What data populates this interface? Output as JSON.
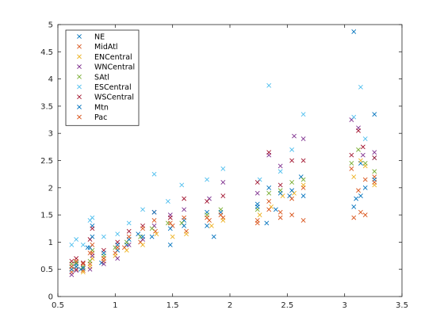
{
  "chart_data": {
    "type": "scatter",
    "title": "",
    "xlabel": "",
    "ylabel": "",
    "xlim": [
      0.5,
      3.5
    ],
    "ylim": [
      0,
      5
    ],
    "x_ticks": [
      "0.5",
      "1",
      "1.5",
      "2",
      "2.5",
      "3",
      "3.5"
    ],
    "y_ticks": [
      "0",
      "0.5",
      "1",
      "1.5",
      "2",
      "2.5",
      "3",
      "3.5",
      "4",
      "4.5",
      "5"
    ],
    "grid": false,
    "legend_position": "top-left",
    "marker": "x",
    "series": [
      {
        "name": "NE",
        "color": "#0072BD",
        "points": [
          [
            0.62,
            0.55
          ],
          [
            0.66,
            0.6
          ],
          [
            0.7,
            0.5
          ],
          [
            0.76,
            0.9
          ],
          [
            0.8,
            1.3
          ],
          [
            0.88,
            0.62
          ],
          [
            1.02,
            0.85
          ],
          [
            1.1,
            0.95
          ],
          [
            1.2,
            1.15
          ],
          [
            1.32,
            1.1
          ],
          [
            1.48,
            0.95
          ],
          [
            1.6,
            1.4
          ],
          [
            1.8,
            1.55
          ],
          [
            1.86,
            1.1
          ],
          [
            2.24,
            1.7
          ],
          [
            2.32,
            1.35
          ],
          [
            2.4,
            1.6
          ],
          [
            2.52,
            1.85
          ],
          [
            2.62,
            2.2
          ],
          [
            3.08,
            4.87
          ],
          [
            3.1,
            1.8
          ],
          [
            3.14,
            2.45
          ],
          [
            3.26,
            3.35
          ]
        ]
      },
      {
        "name": "MidAtl",
        "color": "#D95319",
        "points": [
          [
            0.62,
            0.45
          ],
          [
            0.66,
            0.5
          ],
          [
            0.72,
            0.48
          ],
          [
            0.78,
            0.6
          ],
          [
            0.8,
            0.8
          ],
          [
            0.9,
            0.65
          ],
          [
            1.0,
            0.8
          ],
          [
            1.08,
            0.9
          ],
          [
            1.22,
            1.0
          ],
          [
            1.35,
            1.2
          ],
          [
            1.5,
            1.3
          ],
          [
            1.62,
            1.2
          ],
          [
            1.82,
            1.4
          ],
          [
            1.94,
            1.45
          ],
          [
            2.24,
            1.4
          ],
          [
            2.34,
            1.75
          ],
          [
            2.44,
            1.55
          ],
          [
            2.54,
            1.8
          ],
          [
            2.64,
            2.0
          ],
          [
            3.06,
            2.35
          ],
          [
            3.12,
            1.95
          ],
          [
            3.18,
            2.15
          ],
          [
            3.26,
            2.2
          ]
        ]
      },
      {
        "name": "ENCentral",
        "color": "#EDB120",
        "points": [
          [
            0.62,
            0.5
          ],
          [
            0.66,
            0.55
          ],
          [
            0.72,
            0.45
          ],
          [
            0.78,
            0.55
          ],
          [
            0.8,
            0.7
          ],
          [
            0.9,
            0.7
          ],
          [
            1.0,
            0.75
          ],
          [
            1.1,
            0.85
          ],
          [
            1.24,
            0.95
          ],
          [
            1.36,
            1.15
          ],
          [
            1.5,
            1.1
          ],
          [
            1.62,
            1.15
          ],
          [
            1.84,
            1.3
          ],
          [
            1.94,
            1.4
          ],
          [
            2.26,
            1.5
          ],
          [
            2.36,
            1.65
          ],
          [
            2.46,
            1.85
          ],
          [
            2.56,
            1.9
          ],
          [
            2.64,
            2.05
          ],
          [
            3.08,
            2.2
          ],
          [
            3.14,
            2.5
          ],
          [
            3.18,
            2.4
          ],
          [
            3.26,
            2.05
          ]
        ]
      },
      {
        "name": "WNCentral",
        "color": "#7E2F8E",
        "points": [
          [
            0.62,
            0.4
          ],
          [
            0.66,
            0.48
          ],
          [
            0.72,
            0.52
          ],
          [
            0.78,
            0.5
          ],
          [
            0.8,
            0.75
          ],
          [
            0.9,
            0.6
          ],
          [
            1.02,
            0.7
          ],
          [
            1.12,
            0.95
          ],
          [
            1.24,
            1.05
          ],
          [
            1.34,
            1.3
          ],
          [
            1.48,
            1.5
          ],
          [
            1.6,
            1.6
          ],
          [
            1.82,
            1.8
          ],
          [
            1.94,
            2.1
          ],
          [
            2.24,
            1.9
          ],
          [
            2.34,
            2.6
          ],
          [
            2.44,
            2.4
          ],
          [
            2.56,
            2.95
          ],
          [
            2.64,
            2.9
          ],
          [
            3.06,
            3.25
          ],
          [
            3.12,
            3.1
          ],
          [
            3.16,
            2.6
          ],
          [
            3.26,
            2.65
          ]
        ]
      },
      {
        "name": "SAtl",
        "color": "#77AC30",
        "points": [
          [
            0.62,
            0.6
          ],
          [
            0.66,
            0.62
          ],
          [
            0.72,
            0.55
          ],
          [
            0.78,
            0.65
          ],
          [
            0.8,
            0.85
          ],
          [
            0.9,
            0.75
          ],
          [
            1.0,
            0.9
          ],
          [
            1.1,
            1.0
          ],
          [
            1.22,
            1.1
          ],
          [
            1.32,
            1.25
          ],
          [
            1.46,
            1.35
          ],
          [
            1.58,
            1.35
          ],
          [
            1.8,
            1.5
          ],
          [
            1.92,
            1.6
          ],
          [
            2.24,
            1.6
          ],
          [
            2.34,
            1.9
          ],
          [
            2.44,
            1.95
          ],
          [
            2.54,
            2.1
          ],
          [
            2.64,
            2.15
          ],
          [
            3.06,
            2.45
          ],
          [
            3.12,
            2.7
          ],
          [
            3.18,
            2.45
          ],
          [
            3.26,
            2.3
          ]
        ]
      },
      {
        "name": "ESCentral",
        "color": "#4DBEEE",
        "points": [
          [
            0.62,
            0.95
          ],
          [
            0.66,
            1.05
          ],
          [
            0.72,
            0.95
          ],
          [
            0.78,
            1.4
          ],
          [
            0.8,
            1.45
          ],
          [
            0.9,
            1.1
          ],
          [
            1.02,
            1.15
          ],
          [
            1.12,
            1.35
          ],
          [
            1.24,
            1.6
          ],
          [
            1.34,
            2.25
          ],
          [
            1.46,
            1.75
          ],
          [
            1.58,
            2.05
          ],
          [
            1.8,
            2.15
          ],
          [
            1.94,
            2.35
          ],
          [
            2.26,
            2.15
          ],
          [
            2.34,
            3.88
          ],
          [
            2.44,
            2.3
          ],
          [
            2.54,
            2.7
          ],
          [
            2.64,
            3.35
          ],
          [
            3.08,
            3.3
          ],
          [
            3.14,
            3.85
          ],
          [
            3.18,
            2.9
          ],
          [
            3.26,
            2.55
          ]
        ]
      },
      {
        "name": "WSCentral",
        "color": "#A2142F",
        "points": [
          [
            0.62,
            0.65
          ],
          [
            0.66,
            0.7
          ],
          [
            0.72,
            0.62
          ],
          [
            0.78,
            1.05
          ],
          [
            0.8,
            1.25
          ],
          [
            0.9,
            0.85
          ],
          [
            1.02,
            1.0
          ],
          [
            1.12,
            1.2
          ],
          [
            1.24,
            1.3
          ],
          [
            1.34,
            1.55
          ],
          [
            1.48,
            1.45
          ],
          [
            1.6,
            1.8
          ],
          [
            1.8,
            1.75
          ],
          [
            1.94,
            1.85
          ],
          [
            2.24,
            2.1
          ],
          [
            2.34,
            2.65
          ],
          [
            2.44,
            2.05
          ],
          [
            2.54,
            2.5
          ],
          [
            2.64,
            2.5
          ],
          [
            3.06,
            2.6
          ],
          [
            3.12,
            3.05
          ],
          [
            3.16,
            2.75
          ],
          [
            3.26,
            2.55
          ]
        ]
      },
      {
        "name": "Mtn",
        "color": "#0072BD",
        "points": [
          [
            0.62,
            0.5
          ],
          [
            0.66,
            0.55
          ],
          [
            0.72,
            0.52
          ],
          [
            0.78,
            0.9
          ],
          [
            0.8,
            1.1
          ],
          [
            0.9,
            0.8
          ],
          [
            1.02,
            0.95
          ],
          [
            1.12,
            1.05
          ],
          [
            1.24,
            1.1
          ],
          [
            1.34,
            1.55
          ],
          [
            1.48,
            1.25
          ],
          [
            1.6,
            1.3
          ],
          [
            1.8,
            1.3
          ],
          [
            1.92,
            1.55
          ],
          [
            2.24,
            1.65
          ],
          [
            2.34,
            2.0
          ],
          [
            2.44,
            1.9
          ],
          [
            2.54,
            1.95
          ],
          [
            2.64,
            1.85
          ],
          [
            3.08,
            1.65
          ],
          [
            3.14,
            1.85
          ],
          [
            3.18,
            2.0
          ],
          [
            3.26,
            2.15
          ]
        ]
      },
      {
        "name": "Pac",
        "color": "#D95319",
        "points": [
          [
            0.62,
            0.55
          ],
          [
            0.66,
            0.65
          ],
          [
            0.72,
            0.6
          ],
          [
            0.78,
            0.8
          ],
          [
            0.8,
            0.95
          ],
          [
            0.9,
            0.7
          ],
          [
            1.02,
            0.9
          ],
          [
            1.12,
            1.1
          ],
          [
            1.24,
            1.25
          ],
          [
            1.34,
            1.4
          ],
          [
            1.48,
            1.35
          ],
          [
            1.6,
            1.45
          ],
          [
            1.8,
            1.45
          ],
          [
            1.92,
            1.5
          ],
          [
            2.24,
            1.35
          ],
          [
            2.34,
            1.6
          ],
          [
            2.44,
            1.45
          ],
          [
            2.54,
            1.5
          ],
          [
            2.64,
            1.4
          ],
          [
            3.08,
            1.45
          ],
          [
            3.14,
            1.55
          ],
          [
            3.18,
            1.5
          ],
          [
            3.26,
            2.1
          ]
        ]
      }
    ]
  }
}
